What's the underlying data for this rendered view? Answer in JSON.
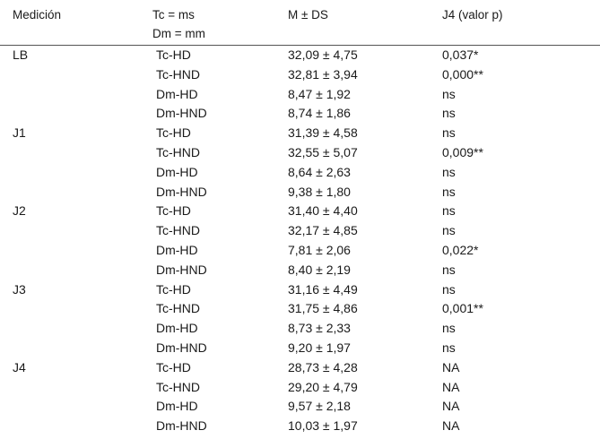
{
  "header": {
    "col1": "Medición",
    "col2_line1": "Tc = ms",
    "col2_line2": "Dm = mm",
    "col3": "M ± DS",
    "col4": "J4 (valor p)"
  },
  "rows": [
    {
      "group": "LB",
      "var": "Tc-HD",
      "value": "32,09 ± 4,75",
      "p": "0,037*"
    },
    {
      "group": "",
      "var": "Tc-HND",
      "value": "32,81 ± 3,94",
      "p": "0,000**"
    },
    {
      "group": "",
      "var": "Dm-HD",
      "value": "8,47 ± 1,92",
      "p": "ns"
    },
    {
      "group": "",
      "var": "Dm-HND",
      "value": "8,74 ± 1,86",
      "p": "ns"
    },
    {
      "group": "J1",
      "var": "Tc-HD",
      "value": "31,39 ± 4,58",
      "p": "ns"
    },
    {
      "group": "",
      "var": "Tc-HND",
      "value": "32,55 ± 5,07",
      "p": "0,009**"
    },
    {
      "group": "",
      "var": "Dm-HD",
      "value": "8,64 ± 2,63",
      "p": "ns"
    },
    {
      "group": "",
      "var": "Dm-HND",
      "value": "9,38 ± 1,80",
      "p": "ns"
    },
    {
      "group": "J2",
      "var": "Tc-HD",
      "value": "31,40 ± 4,40",
      "p": "ns"
    },
    {
      "group": "",
      "var": "Tc-HND",
      "value": "32,17 ± 4,85",
      "p": "ns"
    },
    {
      "group": "",
      "var": "Dm-HD",
      "value": "7,81 ± 2,06",
      "p": "0,022*"
    },
    {
      "group": "",
      "var": "Dm-HND",
      "value": "8,40 ± 2,19",
      "p": "ns"
    },
    {
      "group": "J3",
      "var": "Tc-HD",
      "value": "31,16 ± 4,49",
      "p": "ns"
    },
    {
      "group": "",
      "var": "Tc-HND",
      "value": "31,75 ± 4,86",
      "p": "0,001**"
    },
    {
      "group": "",
      "var": "Dm-HD",
      "value": "8,73 ± 2,33",
      "p": "ns"
    },
    {
      "group": "",
      "var": "Dm-HND",
      "value": "9,20 ± 1,97",
      "p": "ns"
    },
    {
      "group": "J4",
      "var": "Tc-HD",
      "value": "28,73 ± 4,28",
      "p": "NA"
    },
    {
      "group": "",
      "var": "Tc-HND",
      "value": "29,20 ± 4,79",
      "p": "NA"
    },
    {
      "group": "",
      "var": "Dm-HD",
      "value": "9,57 ± 2,18",
      "p": "NA"
    },
    {
      "group": "",
      "var": "Dm-HND",
      "value": "10,03 ± 1,97",
      "p": "NA"
    }
  ]
}
